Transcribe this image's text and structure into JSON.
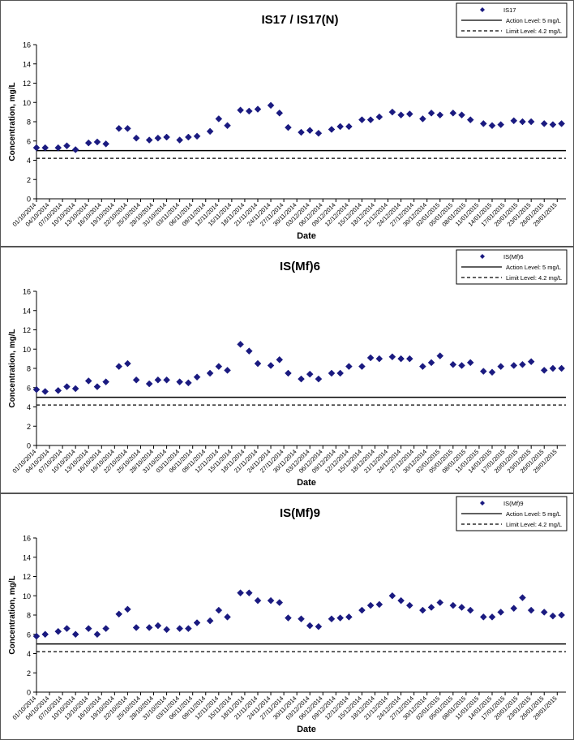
{
  "chart_data": [
    {
      "type": "scatter",
      "title": "IS17 / IS17(N)",
      "xlabel": "Date",
      "ylabel": "Concentration, mg/L",
      "ylim": [
        0,
        16
      ],
      "yticks": [
        0,
        2,
        4,
        6,
        8,
        10,
        12,
        14,
        16
      ],
      "xlim": [
        "2014-10-01",
        "2015-01-31"
      ],
      "xtick_labels": [
        "01/10/2014",
        "04/10/2014",
        "07/10/2014",
        "10/10/2014",
        "13/10/2014",
        "16/10/2014",
        "19/10/2014",
        "22/10/2014",
        "25/10/2014",
        "28/10/2014",
        "31/10/2014",
        "03/11/2014",
        "06/11/2014",
        "09/11/2014",
        "12/11/2014",
        "15/11/2014",
        "18/11/2014",
        "21/11/2014",
        "24/11/2014",
        "27/11/2014",
        "30/11/2014",
        "03/12/2014",
        "06/12/2014",
        "09/12/2014",
        "12/12/2014",
        "15/12/2014",
        "18/12/2014",
        "21/12/2014",
        "24/12/2014",
        "27/12/2014",
        "30/12/2014",
        "02/01/2015",
        "05/01/2015",
        "08/01/2015",
        "11/01/2015",
        "14/01/2015",
        "17/01/2015",
        "20/01/2015",
        "23/01/2015",
        "26/01/2015",
        "29/01/2015"
      ],
      "legend_position": "top-right",
      "series": [
        {
          "name": "IS17",
          "marker": "diamond",
          "color": "#1a1a80",
          "points": [
            [
              "2014-10-01",
              5.3
            ],
            [
              "2014-10-03",
              5.3
            ],
            [
              "2014-10-06",
              5.3
            ],
            [
              "2014-10-08",
              5.5
            ],
            [
              "2014-10-10",
              5.1
            ],
            [
              "2014-10-13",
              5.8
            ],
            [
              "2014-10-15",
              5.9
            ],
            [
              "2014-10-17",
              5.7
            ],
            [
              "2014-10-20",
              7.3
            ],
            [
              "2014-10-22",
              7.3
            ],
            [
              "2014-10-24",
              6.3
            ],
            [
              "2014-10-27",
              6.1
            ],
            [
              "2014-10-29",
              6.3
            ],
            [
              "2014-10-31",
              6.4
            ],
            [
              "2014-11-03",
              6.1
            ],
            [
              "2014-11-05",
              6.4
            ],
            [
              "2014-11-07",
              6.5
            ],
            [
              "2014-11-10",
              7.0
            ],
            [
              "2014-11-12",
              8.3
            ],
            [
              "2014-11-14",
              7.6
            ],
            [
              "2014-11-17",
              9.2
            ],
            [
              "2014-11-19",
              9.1
            ],
            [
              "2014-11-21",
              9.3
            ],
            [
              "2014-11-24",
              9.7
            ],
            [
              "2014-11-26",
              8.9
            ],
            [
              "2014-11-28",
              7.4
            ],
            [
              "2014-12-01",
              6.9
            ],
            [
              "2014-12-03",
              7.1
            ],
            [
              "2014-12-05",
              6.8
            ],
            [
              "2014-12-08",
              7.2
            ],
            [
              "2014-12-10",
              7.5
            ],
            [
              "2014-12-12",
              7.5
            ],
            [
              "2014-12-15",
              8.2
            ],
            [
              "2014-12-17",
              8.2
            ],
            [
              "2014-12-19",
              8.5
            ],
            [
              "2014-12-22",
              9.0
            ],
            [
              "2014-12-24",
              8.7
            ],
            [
              "2014-12-26",
              8.8
            ],
            [
              "2014-12-29",
              8.3
            ],
            [
              "2014-12-31",
              8.9
            ],
            [
              "2015-01-02",
              8.7
            ],
            [
              "2015-01-05",
              8.9
            ],
            [
              "2015-01-07",
              8.7
            ],
            [
              "2015-01-09",
              8.2
            ],
            [
              "2015-01-12",
              7.8
            ],
            [
              "2015-01-14",
              7.6
            ],
            [
              "2015-01-16",
              7.7
            ],
            [
              "2015-01-19",
              8.1
            ],
            [
              "2015-01-21",
              8.0
            ],
            [
              "2015-01-23",
              8.0
            ],
            [
              "2015-01-26",
              7.8
            ],
            [
              "2015-01-28",
              7.7
            ],
            [
              "2015-01-30",
              7.8
            ]
          ]
        },
        {
          "name": "Action Level: 5 mg/L",
          "line": "solid",
          "color": "#000000",
          "value": 5
        },
        {
          "name": "Limit Level: 4.2 mg/L",
          "line": "dashed",
          "color": "#000000",
          "value": 4.2
        }
      ]
    },
    {
      "type": "scatter",
      "title": "IS(Mf)6",
      "xlabel": "Date",
      "ylabel": "Concentration, mg/L",
      "ylim": [
        0,
        16
      ],
      "yticks": [
        0,
        2,
        4,
        6,
        8,
        10,
        12,
        14,
        16
      ],
      "xlim": [
        "2014-10-01",
        "2015-01-31"
      ],
      "xtick_labels": [
        "01/10/2014",
        "04/10/2014",
        "07/10/2014",
        "10/10/2014",
        "13/10/2014",
        "16/10/2014",
        "19/10/2014",
        "22/10/2014",
        "25/10/2014",
        "28/10/2014",
        "31/10/2014",
        "03/11/2014",
        "06/11/2014",
        "09/11/2014",
        "12/11/2014",
        "15/11/2014",
        "18/11/2014",
        "21/11/2014",
        "24/11/2014",
        "27/11/2014",
        "30/11/2014",
        "03/12/2014",
        "06/12/2014",
        "09/12/2014",
        "12/12/2014",
        "15/12/2014",
        "18/12/2014",
        "21/12/2014",
        "24/12/2014",
        "27/12/2014",
        "30/12/2014",
        "02/01/2015",
        "05/01/2015",
        "08/01/2015",
        "11/01/2015",
        "14/01/2015",
        "17/01/2015",
        "20/01/2015",
        "23/01/2015",
        "26/01/2015",
        "29/01/2015"
      ],
      "legend_position": "top-right",
      "series": [
        {
          "name": "IS(Mf)6",
          "marker": "diamond",
          "color": "#1a1a80",
          "points": [
            [
              "2014-10-01",
              5.8
            ],
            [
              "2014-10-03",
              5.6
            ],
            [
              "2014-10-06",
              5.7
            ],
            [
              "2014-10-08",
              6.1
            ],
            [
              "2014-10-10",
              5.9
            ],
            [
              "2014-10-13",
              6.7
            ],
            [
              "2014-10-15",
              6.1
            ],
            [
              "2014-10-17",
              6.6
            ],
            [
              "2014-10-20",
              8.2
            ],
            [
              "2014-10-22",
              8.5
            ],
            [
              "2014-10-24",
              6.8
            ],
            [
              "2014-10-27",
              6.4
            ],
            [
              "2014-10-29",
              6.8
            ],
            [
              "2014-10-31",
              6.8
            ],
            [
              "2014-11-03",
              6.6
            ],
            [
              "2014-11-05",
              6.5
            ],
            [
              "2014-11-07",
              7.1
            ],
            [
              "2014-11-10",
              7.5
            ],
            [
              "2014-11-12",
              8.2
            ],
            [
              "2014-11-14",
              7.8
            ],
            [
              "2014-11-17",
              10.5
            ],
            [
              "2014-11-19",
              9.8
            ],
            [
              "2014-11-21",
              8.5
            ],
            [
              "2014-11-24",
              8.3
            ],
            [
              "2014-11-26",
              8.9
            ],
            [
              "2014-11-28",
              7.5
            ],
            [
              "2014-12-01",
              6.9
            ],
            [
              "2014-12-03",
              7.4
            ],
            [
              "2014-12-05",
              6.9
            ],
            [
              "2014-12-08",
              7.5
            ],
            [
              "2014-12-10",
              7.5
            ],
            [
              "2014-12-12",
              8.2
            ],
            [
              "2014-12-15",
              8.2
            ],
            [
              "2014-12-17",
              9.1
            ],
            [
              "2014-12-19",
              9.0
            ],
            [
              "2014-12-22",
              9.2
            ],
            [
              "2014-12-24",
              9.0
            ],
            [
              "2014-12-26",
              9.0
            ],
            [
              "2014-12-29",
              8.2
            ],
            [
              "2014-12-31",
              8.6
            ],
            [
              "2015-01-02",
              9.3
            ],
            [
              "2015-01-05",
              8.4
            ],
            [
              "2015-01-07",
              8.3
            ],
            [
              "2015-01-09",
              8.6
            ],
            [
              "2015-01-12",
              7.7
            ],
            [
              "2015-01-14",
              7.6
            ],
            [
              "2015-01-16",
              8.2
            ],
            [
              "2015-01-19",
              8.3
            ],
            [
              "2015-01-21",
              8.4
            ],
            [
              "2015-01-23",
              8.7
            ],
            [
              "2015-01-26",
              7.8
            ],
            [
              "2015-01-28",
              8.0
            ],
            [
              "2015-01-30",
              8.0
            ]
          ]
        },
        {
          "name": "Action Level: 5 mg/L",
          "line": "solid",
          "color": "#000000",
          "value": 5
        },
        {
          "name": "Limit Level: 4.2 mg/L",
          "line": "dashed",
          "color": "#000000",
          "value": 4.2
        }
      ]
    },
    {
      "type": "scatter",
      "title": "IS(Mf)9",
      "xlabel": "Date",
      "ylabel": "Concentration, mg/L",
      "ylim": [
        0,
        16
      ],
      "yticks": [
        0,
        2,
        4,
        6,
        8,
        10,
        12,
        14,
        16
      ],
      "xlim": [
        "2014-10-01",
        "2015-01-31"
      ],
      "xtick_labels": [
        "01/10/2014",
        "04/10/2014",
        "07/10/2014",
        "10/10/2014",
        "13/10/2014",
        "16/10/2014",
        "19/10/2014",
        "22/10/2014",
        "25/10/2014",
        "28/10/2014",
        "31/10/2014",
        "03/11/2014",
        "06/11/2014",
        "09/11/2014",
        "12/11/2014",
        "15/11/2014",
        "18/11/2014",
        "21/11/2014",
        "24/11/2014",
        "27/11/2014",
        "30/11/2014",
        "03/12/2014",
        "06/12/2014",
        "09/12/2014",
        "12/12/2014",
        "15/12/2014",
        "18/12/2014",
        "21/12/2014",
        "24/12/2014",
        "27/12/2014",
        "30/12/2014",
        "02/01/2015",
        "05/01/2015",
        "08/01/2015",
        "11/01/2015",
        "14/01/2015",
        "17/01/2015",
        "20/01/2015",
        "23/01/2015",
        "26/01/2015",
        "29/01/2015"
      ],
      "legend_position": "top-right",
      "series": [
        {
          "name": "IS(Mf)9",
          "marker": "diamond",
          "color": "#1a1a80",
          "points": [
            [
              "2014-10-01",
              5.8
            ],
            [
              "2014-10-03",
              6.0
            ],
            [
              "2014-10-06",
              6.3
            ],
            [
              "2014-10-08",
              6.6
            ],
            [
              "2014-10-10",
              6.0
            ],
            [
              "2014-10-13",
              6.6
            ],
            [
              "2014-10-15",
              6.0
            ],
            [
              "2014-10-17",
              6.6
            ],
            [
              "2014-10-20",
              8.1
            ],
            [
              "2014-10-22",
              8.6
            ],
            [
              "2014-10-24",
              6.7
            ],
            [
              "2014-10-27",
              6.7
            ],
            [
              "2014-10-29",
              6.9
            ],
            [
              "2014-10-31",
              6.5
            ],
            [
              "2014-11-03",
              6.6
            ],
            [
              "2014-11-05",
              6.6
            ],
            [
              "2014-11-07",
              7.2
            ],
            [
              "2014-11-10",
              7.4
            ],
            [
              "2014-11-12",
              8.5
            ],
            [
              "2014-11-14",
              7.8
            ],
            [
              "2014-11-17",
              10.3
            ],
            [
              "2014-11-19",
              10.3
            ],
            [
              "2014-11-21",
              9.5
            ],
            [
              "2014-11-24",
              9.5
            ],
            [
              "2014-11-26",
              9.3
            ],
            [
              "2014-11-28",
              7.7
            ],
            [
              "2014-12-01",
              7.6
            ],
            [
              "2014-12-03",
              6.9
            ],
            [
              "2014-12-05",
              6.8
            ],
            [
              "2014-12-08",
              7.6
            ],
            [
              "2014-12-10",
              7.7
            ],
            [
              "2014-12-12",
              7.8
            ],
            [
              "2014-12-15",
              8.5
            ],
            [
              "2014-12-17",
              9.0
            ],
            [
              "2014-12-19",
              9.1
            ],
            [
              "2014-12-22",
              10.0
            ],
            [
              "2014-12-24",
              9.5
            ],
            [
              "2014-12-26",
              9.0
            ],
            [
              "2014-12-29",
              8.5
            ],
            [
              "2014-12-31",
              8.8
            ],
            [
              "2015-01-02",
              9.3
            ],
            [
              "2015-01-05",
              9.0
            ],
            [
              "2015-01-07",
              8.8
            ],
            [
              "2015-01-09",
              8.5
            ],
            [
              "2015-01-12",
              7.8
            ],
            [
              "2015-01-14",
              7.8
            ],
            [
              "2015-01-16",
              8.3
            ],
            [
              "2015-01-19",
              8.7
            ],
            [
              "2015-01-21",
              9.8
            ],
            [
              "2015-01-23",
              8.5
            ],
            [
              "2015-01-26",
              8.3
            ],
            [
              "2015-01-28",
              7.9
            ],
            [
              "2015-01-30",
              8.0
            ]
          ]
        },
        {
          "name": "Action Level: 5 mg/L",
          "line": "solid",
          "color": "#000000",
          "value": 5
        },
        {
          "name": "Limit Level: 4.2 mg/L",
          "line": "dashed",
          "color": "#000000",
          "value": 4.2
        }
      ]
    }
  ]
}
